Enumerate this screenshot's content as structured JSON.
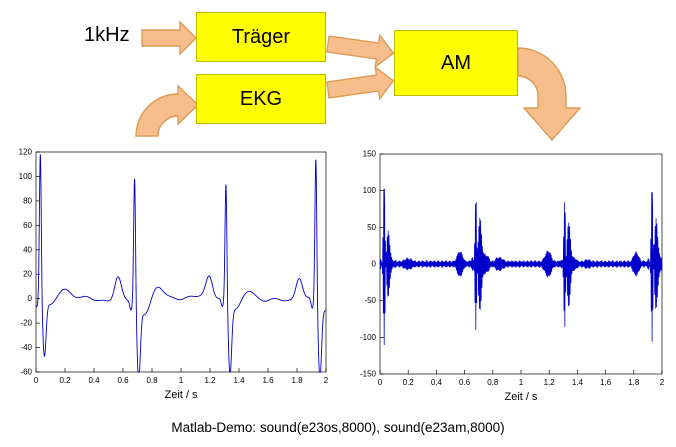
{
  "diagram": {
    "input_label": "1kHz",
    "blocks": [
      {
        "label": "Träger"
      },
      {
        "label": "EKG"
      },
      {
        "label": "AM"
      }
    ],
    "block_fill": "#FFFF00",
    "arrow_fill": "#F6BE8C",
    "arrow_stroke": "#DE9A55"
  },
  "caption": "Matlab-Demo:  sound(e23os,8000),  sound(e23am,8000)",
  "chart_data": [
    {
      "type": "line",
      "name": "ekg-signal",
      "title": "",
      "xlabel": "Zeit / s",
      "ylabel": "",
      "xlim": [
        0,
        2
      ],
      "ylim": [
        -60,
        120
      ],
      "xticks": [
        0,
        0.2,
        0.4,
        0.6,
        0.8,
        1,
        1.2,
        1.4,
        1.6,
        1.8,
        2
      ],
      "yticks": [
        -60,
        -40,
        -20,
        0,
        20,
        40,
        60,
        80,
        100,
        120
      ],
      "line_color": "#0000CC",
      "grid": false,
      "beats": [
        {
          "t": 0.03,
          "r": 120,
          "s": -45,
          "p": 0,
          "tw": 8
        },
        {
          "t": 0.68,
          "r": 104,
          "s": -60,
          "p": 18,
          "tw": 9
        },
        {
          "t": 1.31,
          "r": 97,
          "s": -57,
          "p": 17,
          "tw": 8
        },
        {
          "t": 1.93,
          "r": 118,
          "s": -60,
          "p": 19,
          "tw": 0
        }
      ]
    },
    {
      "type": "line",
      "name": "am-signal",
      "title": "",
      "xlabel": "Zeit / s",
      "ylabel": "",
      "xlim": [
        0,
        2
      ],
      "ylim": [
        -150,
        150
      ],
      "xticks": [
        0,
        0.2,
        0.4,
        0.6,
        0.8,
        1,
        1.2,
        1.4,
        1.6,
        1.8,
        2
      ],
      "yticks": [
        -150,
        -100,
        -50,
        0,
        50,
        100,
        150
      ],
      "line_color": "#0000CC",
      "grid": false,
      "carrier_hz": 1000,
      "modulates": "ekg-signal",
      "noise_floor": 3.5,
      "burst_peaks": [
        120,
        104,
        97,
        118
      ]
    }
  ]
}
